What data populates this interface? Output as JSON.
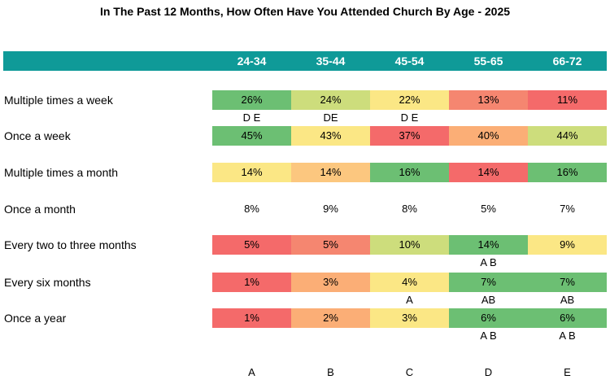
{
  "chart_data": {
    "type": "table",
    "title": "In The Past 12 Months, How Often Have You Attended Church By Age  - 2025",
    "columns": [
      "24-34",
      "35-44",
      "45-54",
      "55-65",
      "66-72"
    ],
    "column_letters": [
      "A",
      "B",
      "C",
      "D",
      "E"
    ],
    "rows": [
      {
        "label": "Multiple times a week",
        "values": [
          "26%",
          "24%",
          "22%",
          "13%",
          "11%"
        ],
        "colors": [
          "#6cbf73",
          "#cddd7c",
          "#fbe785",
          "#f58670",
          "#f46a6a"
        ],
        "sig": [
          "D E",
          "DE",
          "D E",
          "",
          ""
        ]
      },
      {
        "label": "Once a week",
        "values": [
          "45%",
          "43%",
          "37%",
          "40%",
          "44%"
        ],
        "colors": [
          "#6cbf73",
          "#fbe785",
          "#f46a6a",
          "#fbae76",
          "#cddd7c"
        ],
        "sig": [
          "",
          "",
          "",
          "",
          ""
        ]
      },
      {
        "label": "Multiple times a month",
        "values": [
          "14%",
          "14%",
          "16%",
          "14%",
          "16%"
        ],
        "colors": [
          "#fbe785",
          "#fcc77f",
          "#6cbf73",
          "#f46a6a",
          "#6cbf73"
        ],
        "sig": [
          "",
          "",
          "",
          "",
          ""
        ]
      },
      {
        "label": "Once a month",
        "values": [
          "8%",
          "9%",
          "8%",
          "5%",
          "7%"
        ],
        "colors": [
          "#ffffff",
          "#ffffff",
          "#ffffff",
          "#ffffff",
          "#ffffff"
        ],
        "sig": [
          "",
          "",
          "",
          "",
          ""
        ]
      },
      {
        "label": "Every two to three months",
        "values": [
          "5%",
          "5%",
          "10%",
          "14%",
          "9%"
        ],
        "colors": [
          "#f46a6a",
          "#f58670",
          "#cddd7c",
          "#6cbf73",
          "#fbe785"
        ],
        "sig": [
          "",
          "",
          "",
          "A B",
          ""
        ]
      },
      {
        "label": "Every six months",
        "values": [
          "1%",
          "3%",
          "4%",
          "7%",
          "7%"
        ],
        "colors": [
          "#f46a6a",
          "#fbae76",
          "#fbe785",
          "#6cbf73",
          "#6cbf73"
        ],
        "sig": [
          "",
          "",
          "A",
          "AB",
          "AB"
        ]
      },
      {
        "label": "Once a year",
        "values": [
          "1%",
          "2%",
          "3%",
          "6%",
          "6%"
        ],
        "colors": [
          "#f46a6a",
          "#fbae76",
          "#fbe785",
          "#6cbf73",
          "#6cbf73"
        ],
        "sig": [
          "",
          "",
          "",
          "A B",
          "A B"
        ]
      }
    ]
  },
  "colors": {
    "header_band": "#0f9a98",
    "header_text": "#ffffff"
  }
}
